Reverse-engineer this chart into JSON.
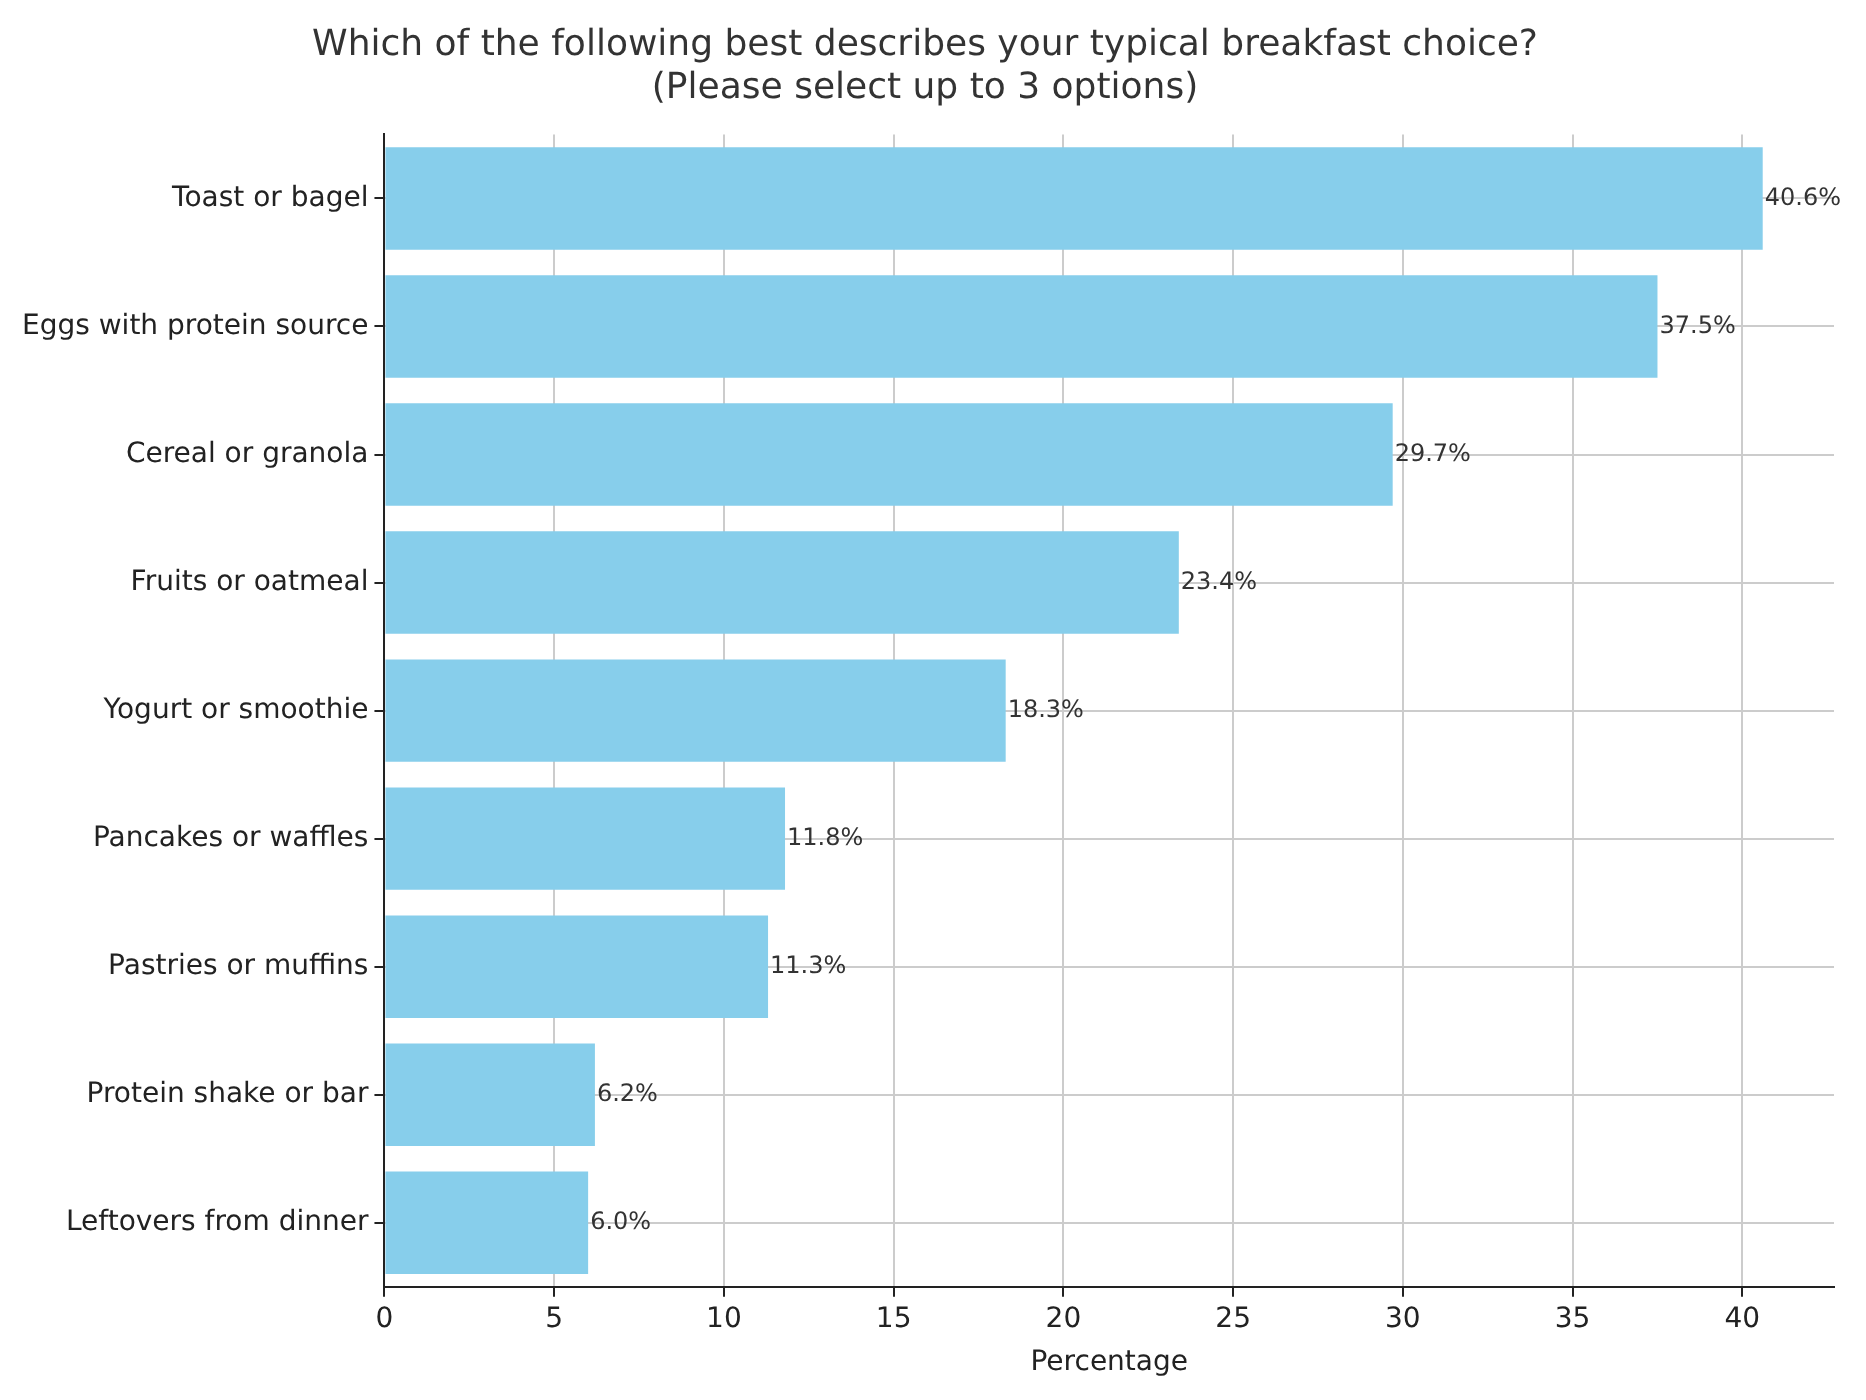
{
  "chart_data": {
    "type": "bar",
    "orientation": "horizontal",
    "title": "Which of the following best describes your typical breakfast choice?\n(Please select up to 3 options)",
    "xlabel": "Percentage",
    "categories": [
      "Toast or bagel",
      "Eggs with protein source",
      "Cereal or granola",
      "Fruits or oatmeal",
      "Yogurt or smoothie",
      "Pancakes or waffles",
      "Pastries or muffins",
      "Protein shake or bar",
      "Leftovers from dinner"
    ],
    "values": [
      40.6,
      37.5,
      29.7,
      23.4,
      18.3,
      11.8,
      11.3,
      6.2,
      6.0
    ],
    "value_labels": [
      "40.6%",
      "37.5%",
      "29.7%",
      "23.4%",
      "18.3%",
      "11.8%",
      "11.3%",
      "6.2%",
      "6.0%"
    ],
    "color": "#87ceeb",
    "xlim": [
      0,
      42.7
    ],
    "xticks": [
      0,
      5,
      10,
      15,
      20,
      25,
      30,
      35,
      40
    ],
    "grid": true,
    "legend": false
  }
}
